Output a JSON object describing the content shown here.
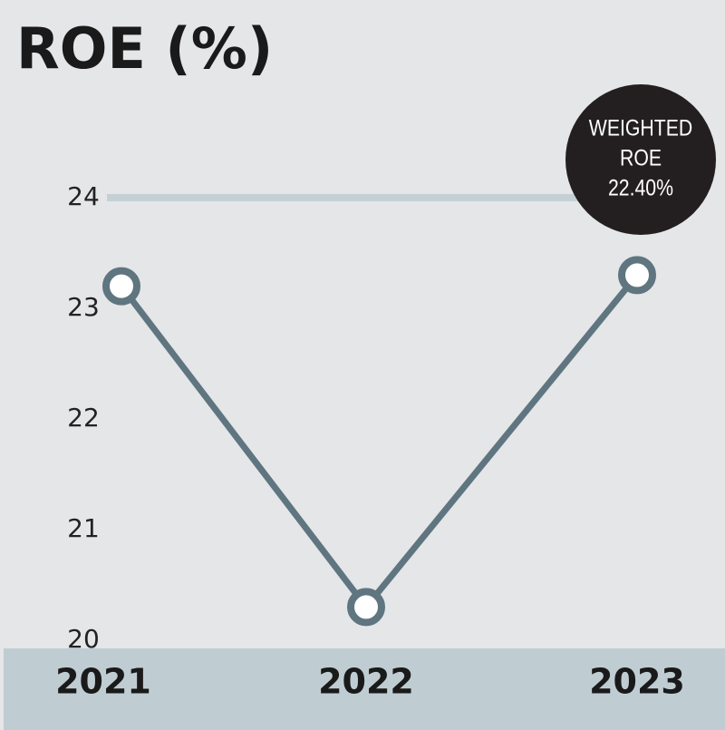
{
  "chart_data": {
    "type": "line",
    "title": "ROE (%)",
    "categories": [
      "2021",
      "2022",
      "2023"
    ],
    "series": [
      {
        "name": "ROE",
        "color": "#5f7580",
        "values": [
          23.2,
          20.3,
          23.3
        ]
      }
    ],
    "ylim": [
      20,
      24
    ],
    "yticks": [
      20,
      21,
      22,
      23,
      24
    ],
    "reference_line": 24,
    "annotation": [
      "WEIGHTED",
      "ROE",
      "22.40%"
    ]
  }
}
